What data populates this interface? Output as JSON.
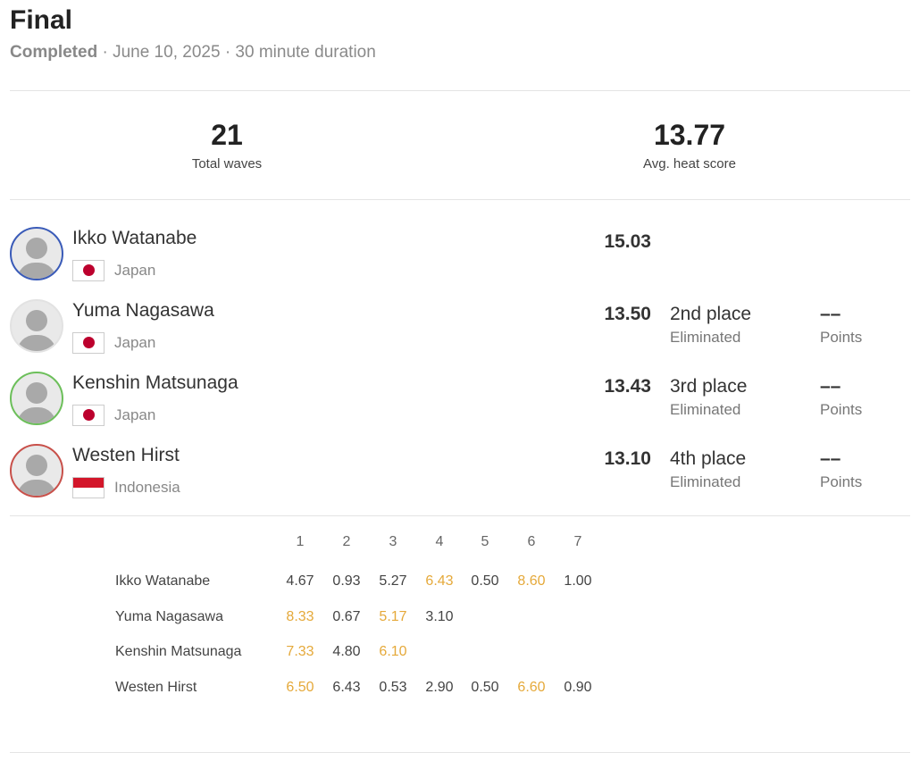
{
  "header": {
    "title": "Final",
    "status": "Completed",
    "separator": "·",
    "date": "June 10, 2025",
    "duration": "30 minute duration"
  },
  "stats": [
    {
      "value": "21",
      "label": "Total waves"
    },
    {
      "value": "13.77",
      "label": "Avg. heat score"
    }
  ],
  "surfers": [
    {
      "name": "Ikko Watanabe",
      "country": "Japan",
      "score": "15.03"
    },
    {
      "name": "Yuma Nagasawa",
      "country": "Japan",
      "score": "13.50",
      "place": "2nd place",
      "status": "Eliminated",
      "points": "––",
      "points_label": "Points"
    },
    {
      "name": "Kenshin Matsunaga",
      "country": "Japan",
      "score": "13.43",
      "place": "3rd place",
      "status": "Eliminated",
      "points": "––",
      "points_label": "Points"
    },
    {
      "name": "Westen Hirst",
      "country": "Indonesia",
      "score": "13.10",
      "place": "4th place",
      "status": "Eliminated",
      "points": "––",
      "points_label": "Points"
    }
  ],
  "wave_table": {
    "columns": [
      "1",
      "2",
      "3",
      "4",
      "5",
      "6",
      "7"
    ],
    "rows": [
      {
        "name": "Ikko Watanabe",
        "waves": [
          "4.67",
          "0.93",
          "5.27",
          "6.43",
          "0.50",
          "8.60",
          "1.00"
        ],
        "counting": [
          3,
          5
        ]
      },
      {
        "name": "Yuma Nagasawa",
        "waves": [
          "8.33",
          "0.67",
          "5.17",
          "3.10"
        ],
        "counting": [
          0,
          2
        ]
      },
      {
        "name": "Kenshin Matsunaga",
        "waves": [
          "7.33",
          "4.80",
          "6.10"
        ],
        "counting": [
          0,
          2
        ]
      },
      {
        "name": "Westen Hirst",
        "waves": [
          "6.50",
          "6.43",
          "0.53",
          "2.90",
          "0.50",
          "6.60",
          "0.90"
        ],
        "counting": [
          0,
          5
        ]
      }
    ]
  }
}
